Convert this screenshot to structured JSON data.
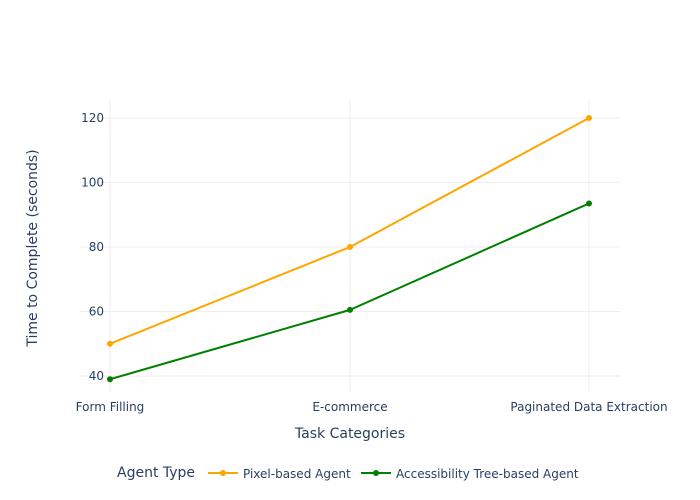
{
  "chart_data": {
    "type": "line",
    "title": "",
    "xlabel": "Task Categories",
    "ylabel": "Time to Complete (seconds)",
    "categories": [
      "Form Filling",
      "E-commerce",
      "Paginated Data Extraction"
    ],
    "yticks": [
      40,
      60,
      80,
      100,
      120
    ],
    "ylim": [
      35,
      126
    ],
    "grid": true,
    "legend": {
      "title": "Agent Type",
      "placement": "bottom"
    },
    "series": [
      {
        "name": "Pixel-based Agent",
        "color": "#FFA500",
        "values": [
          50,
          80,
          120
        ]
      },
      {
        "name": "Accessibility Tree-based Agent",
        "color": "#008000",
        "values": [
          39,
          60.5,
          93.5
        ]
      }
    ]
  }
}
